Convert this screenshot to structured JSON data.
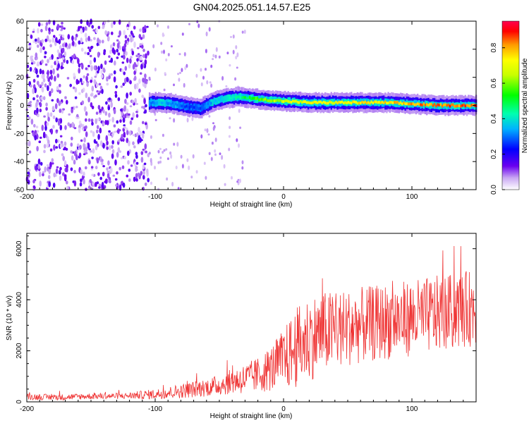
{
  "title": "GN04.2025.051.14.57.E25",
  "chart_data": [
    {
      "type": "heatmap",
      "xlabel": "Height of straight line (km)",
      "ylabel": "Frequency (Hz)",
      "xlim": [
        -200,
        150
      ],
      "ylim": [
        -60,
        60
      ],
      "x_ticks": [
        -200,
        -100,
        0,
        100
      ],
      "y_ticks": [
        -60,
        -40,
        -20,
        0,
        20,
        40,
        60
      ],
      "colorbar": {
        "label": "Normalized spectral amplitude",
        "range": [
          0.0,
          0.95
        ],
        "ticks": [
          0.0,
          0.2,
          0.4,
          0.6,
          0.8
        ],
        "colormap": "rainbow"
      },
      "ridge": {
        "x": [
          -105,
          -95,
          -85,
          -75,
          -65,
          -55,
          -45,
          -35,
          -25,
          -15,
          0,
          20,
          40,
          60,
          80,
          100,
          120,
          150
        ],
        "frequency_hz": [
          2,
          2,
          1,
          -1,
          -2,
          3,
          5,
          6,
          5,
          4,
          3,
          2,
          2,
          2,
          2,
          1,
          0,
          0
        ],
        "peak_amplitude": [
          0.35,
          0.4,
          0.35,
          0.3,
          0.3,
          0.4,
          0.45,
          0.5,
          0.6,
          0.7,
          0.75,
          0.8,
          0.8,
          0.85,
          0.85,
          0.9,
          0.95,
          0.95
        ]
      },
      "noise_region_x": [
        -200,
        -105
      ]
    },
    {
      "type": "line",
      "xlabel": "Height of straight line (km)",
      "ylabel": "SNR (10 * v/v)",
      "xlim": [
        -200,
        150
      ],
      "ylim": [
        0,
        6600
      ],
      "x_ticks": [
        -200,
        -100,
        0,
        100
      ],
      "y_ticks": [
        0,
        2000,
        4000,
        6000
      ],
      "color": "#ef3535",
      "series": [
        {
          "x": [
            -200,
            -175,
            -150,
            -125,
            -100,
            -75,
            -50,
            -40,
            -30,
            -20,
            -10,
            0,
            10,
            20,
            30,
            40,
            50,
            60,
            70,
            80,
            90,
            100,
            110,
            120,
            130,
            140,
            150
          ],
          "values": [
            200,
            180,
            220,
            230,
            300,
            450,
            650,
            800,
            900,
            1050,
            1300,
            1650,
            2100,
            2500,
            2700,
            2800,
            2900,
            3000,
            3050,
            3150,
            3200,
            3300,
            3350,
            3450,
            3500,
            3600,
            3700
          ],
          "spread": [
            120,
            120,
            120,
            120,
            200,
            300,
            400,
            500,
            600,
            700,
            900,
            1200,
            1600,
            1700,
            1600,
            1600,
            1500,
            1500,
            1500,
            1500,
            1500,
            1500,
            1500,
            1500,
            1500,
            1500,
            1500
          ]
        }
      ]
    }
  ]
}
